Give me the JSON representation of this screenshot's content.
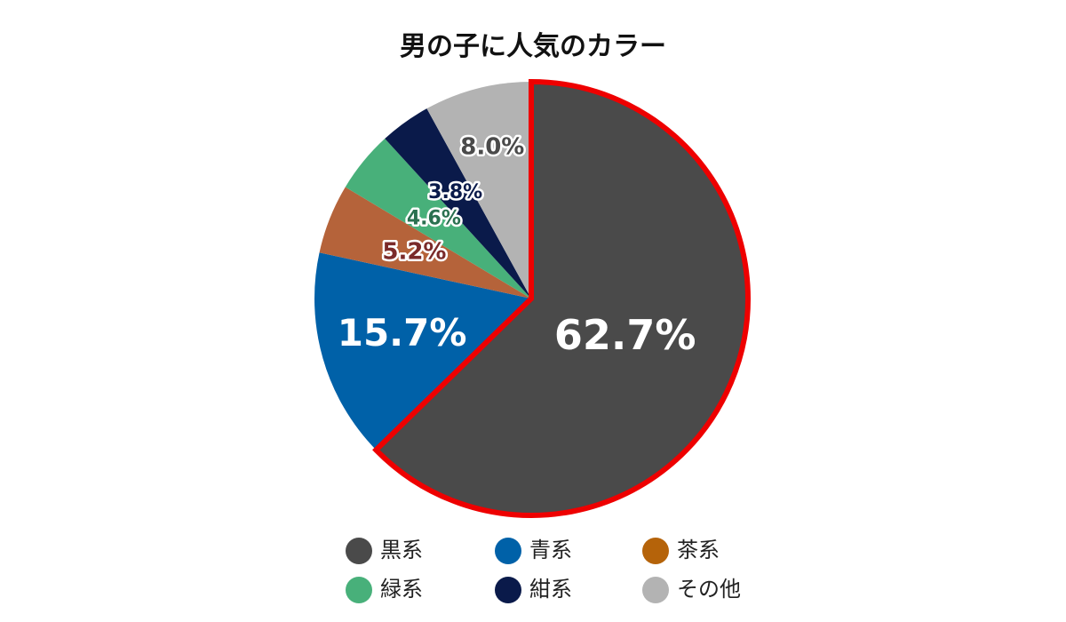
{
  "chart_data": {
    "type": "pie",
    "title": "男の子に人気のカラー",
    "start_angle_deg": 0,
    "direction": "clockwise",
    "highlight_index": 0,
    "highlight_color": "#ee0000",
    "slices": [
      {
        "label": "黒系",
        "value": 62.7,
        "display": "62.7%",
        "color": "#4a4a4a",
        "label_color": "#ffffff",
        "label_stroke": "#4a4a4a",
        "label_size": 46
      },
      {
        "label": "青系",
        "value": 15.7,
        "display": "15.7%",
        "color": "#0061a8",
        "label_color": "#ffffff",
        "label_stroke": "#0061a8",
        "label_size": 42
      },
      {
        "label": "茶系",
        "value": 5.2,
        "display": "5.2%",
        "color": "#b5633a",
        "label_color": "#7a2a2a",
        "label_stroke": "#ffffff",
        "label_size": 26
      },
      {
        "label": "緑系",
        "value": 4.6,
        "display": "4.6%",
        "color": "#48b07a",
        "label_color": "#2a7050",
        "label_stroke": "#ffffff",
        "label_size": 22
      },
      {
        "label": "紺系",
        "value": 3.8,
        "display": "3.8%",
        "color": "#0a1a4a",
        "label_color": "#0a1a4a",
        "label_stroke": "#ffffff",
        "label_size": 22
      },
      {
        "label": "その他",
        "value": 8.0,
        "display": "8.0%",
        "color": "#b3b3b3",
        "label_color": "#4a4a4a",
        "label_stroke": "#ffffff",
        "label_size": 26
      }
    ],
    "legend": {
      "position": "bottom",
      "items": [
        {
          "label": "黒系",
          "color": "#4a4a4a"
        },
        {
          "label": "青系",
          "color": "#0061a8"
        },
        {
          "label": "茶系",
          "color": "#b5630a"
        },
        {
          "label": "緑系",
          "color": "#48b07a"
        },
        {
          "label": "紺系",
          "color": "#0a1a4a"
        },
        {
          "label": "その他",
          "color": "#b3b3b3"
        }
      ]
    }
  }
}
